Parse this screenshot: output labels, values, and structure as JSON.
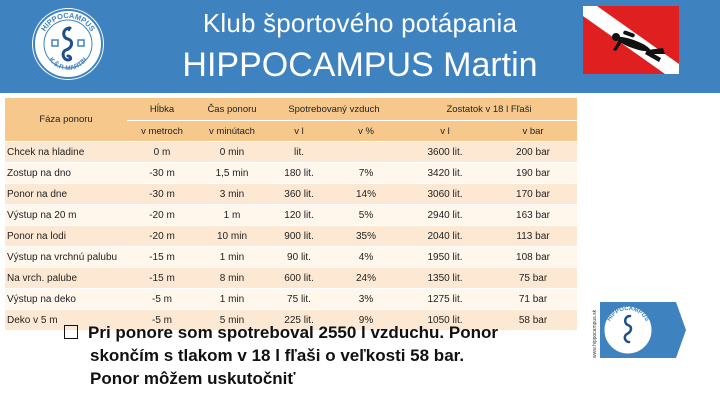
{
  "header": {
    "title_line1": "Klub športového potápania",
    "title_line2": "HIPPOCAMPUS Martin",
    "logo_text": "HIPPOCAMPUS",
    "logo_subtext": "K.Š.P. MARTIN",
    "background_color": "#3e83c0"
  },
  "table": {
    "headers": {
      "phase": "Fáza ponoru",
      "depth": "Hĺbka",
      "time": "Čas ponoru",
      "air_used": "Spotrebovaný vzduch",
      "tank_left": "Zostatok v 18 l Fľaši",
      "depth_unit": "v metroch",
      "time_unit": "v minútach",
      "air_l": "v l",
      "air_pct": "v %",
      "tank_l": "v l",
      "tank_bar": "v bar"
    },
    "rows": [
      {
        "phase": "Chcek na hladine",
        "depth": "0 m",
        "time": "0 min",
        "air_l": "lit.",
        "air_pct": "",
        "tank_l": "3600 lit.",
        "tank_bar": "200 bar"
      },
      {
        "phase": "Zostup na dno",
        "depth": "-30 m",
        "time": "1,5 min",
        "air_l": "180 lit.",
        "air_pct": "7%",
        "tank_l": "3420 lit.",
        "tank_bar": "190 bar"
      },
      {
        "phase": "Ponor na dne",
        "depth": "-30 m",
        "time": "3 min",
        "air_l": "360 lit.",
        "air_pct": "14%",
        "tank_l": "3060 lit.",
        "tank_bar": "170 bar"
      },
      {
        "phase": "Výstup na 20 m",
        "depth": "-20 m",
        "time": "1 m",
        "air_l": "120 lit.",
        "air_pct": "5%",
        "tank_l": "2940 lit.",
        "tank_bar": "163 bar"
      },
      {
        "phase": "Ponor na lodi",
        "depth": "-20 m",
        "time": "10 min",
        "air_l": "900 lit.",
        "air_pct": "35%",
        "tank_l": "2040 lit.",
        "tank_bar": "113 bar"
      },
      {
        "phase": "Výstup na vrchnú palubu",
        "depth": "-15 m",
        "time": "1 min",
        "air_l": "90 lit.",
        "air_pct": "4%",
        "tank_l": "1950 lit.",
        "tank_bar": "108 bar"
      },
      {
        "phase": "Na vrch. palube",
        "depth": "-15 m",
        "time": "8 min",
        "air_l": "600 lit.",
        "air_pct": "24%",
        "tank_l": "1350 lit.",
        "tank_bar": "75 bar"
      },
      {
        "phase": "Výstup na deko",
        "depth": "-5 m",
        "time": "1 min",
        "air_l": "75 lit.",
        "air_pct": "3%",
        "tank_l": "1275 lit.",
        "tank_bar": "71 bar"
      },
      {
        "phase": "Deko v 5 m",
        "depth": "-5 m",
        "time": "5 min",
        "air_l": "225 lit.",
        "air_pct": "9%",
        "tank_l": "1050 lit.",
        "tank_bar": "58 bar"
      }
    ]
  },
  "note": {
    "line1": "Pri ponore som spotreboval 2550 l vzduchu. Ponor",
    "line2": "skončím s tlakom v 18 l fľaši o veľkosti 58 bar.",
    "line3": "Ponor môžem uskutočniť"
  },
  "logo_right": {
    "url_text": "www.hippocampus.sk",
    "text": "HIPPOCAMPUS"
  },
  "icons": {
    "logo_left": "seahorse-club-logo",
    "dive_flag": "diver-down-flag-icon",
    "note_bullet": "checkbox-icon"
  }
}
